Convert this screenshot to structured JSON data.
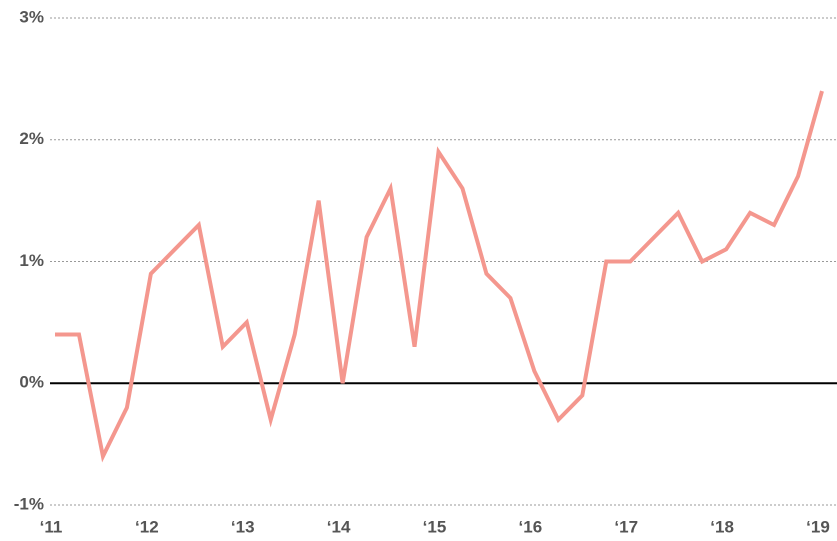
{
  "chart_data": {
    "type": "line",
    "x": [
      2011,
      2011.25,
      2011.5,
      2011.75,
      2012,
      2012.25,
      2012.5,
      2012.75,
      2013,
      2013.25,
      2013.5,
      2013.75,
      2014,
      2014.25,
      2014.5,
      2014.75,
      2015,
      2015.25,
      2015.5,
      2015.75,
      2016,
      2016.25,
      2016.5,
      2016.75,
      2017,
      2017.25,
      2017.5,
      2017.75,
      2018,
      2018.25,
      2018.5,
      2018.75,
      2019
    ],
    "values": [
      0.4,
      0.4,
      -0.6,
      -0.2,
      0.9,
      1.1,
      1.3,
      0.3,
      0.5,
      -0.3,
      0.4,
      1.5,
      0.0,
      1.2,
      1.6,
      0.3,
      1.9,
      1.6,
      0.9,
      0.7,
      0.1,
      -0.3,
      -0.1,
      1.0,
      1.0,
      1.2,
      1.4,
      1.0,
      1.1,
      1.4,
      1.3,
      1.7,
      2.4
    ],
    "color": "#f4978e",
    "xlim": [
      2011,
      2019
    ],
    "xticks": [
      {
        "value": 2011,
        "label": "‘11"
      },
      {
        "value": 2012,
        "label": "‘12"
      },
      {
        "value": 2013,
        "label": "‘13"
      },
      {
        "value": 2014,
        "label": "‘14"
      },
      {
        "value": 2015,
        "label": "‘15"
      },
      {
        "value": 2016,
        "label": "‘16"
      },
      {
        "value": 2017,
        "label": "‘17"
      },
      {
        "value": 2018,
        "label": "‘18"
      },
      {
        "value": 2019,
        "label": "‘19"
      }
    ],
    "ylim": [
      -1,
      3
    ],
    "yticks": [
      {
        "value": -1,
        "label": "-1%"
      },
      {
        "value": 0,
        "label": "0%"
      },
      {
        "value": 1,
        "label": "1%"
      },
      {
        "value": 2,
        "label": "2%"
      },
      {
        "value": 3,
        "label": "3%"
      }
    ],
    "grid": true
  }
}
